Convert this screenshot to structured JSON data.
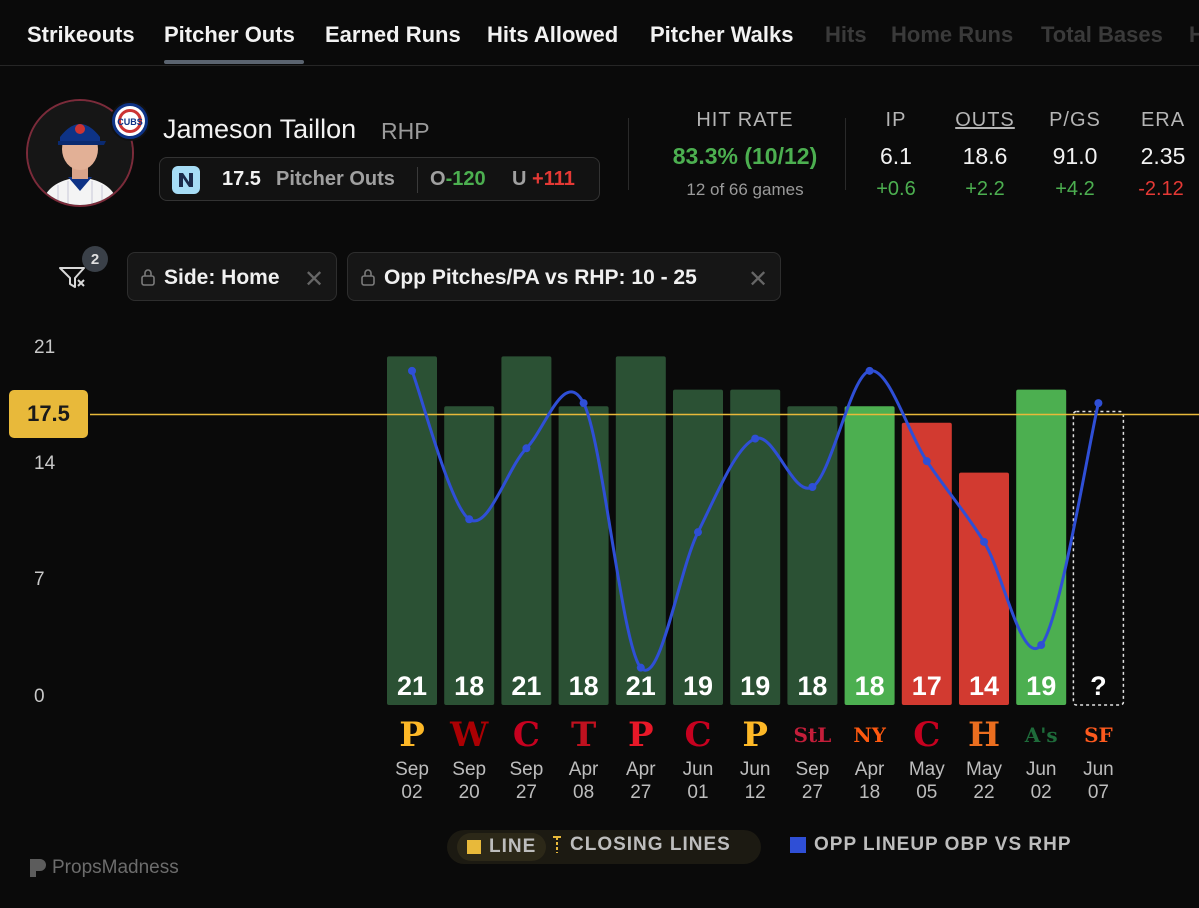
{
  "tabs": [
    {
      "label": "Strikeouts",
      "faded": false
    },
    {
      "label": "Pitcher Outs",
      "faded": false,
      "active": true
    },
    {
      "label": "Earned Runs",
      "faded": false
    },
    {
      "label": "Hits Allowed",
      "faded": false
    },
    {
      "label": "Pitcher Walks",
      "faded": false
    },
    {
      "label": "Hits",
      "faded": true
    },
    {
      "label": "Home Runs",
      "faded": true
    },
    {
      "label": "Total Bases",
      "faded": true
    },
    {
      "label": "H",
      "faded": true
    }
  ],
  "player": {
    "name": "Jameson Taillon",
    "position": "RHP",
    "team_logo_text": "CUBS"
  },
  "prop": {
    "line": "17.5",
    "label": "Pitcher Outs",
    "over_prefix": "O",
    "over_odds": "-120",
    "under_prefix": "U",
    "under_odds": "+111"
  },
  "hit_rate": {
    "header": "HIT RATE",
    "value": "83.3% (10/12)",
    "sub": "12 of 66 games"
  },
  "stats": [
    {
      "header": "IP",
      "value": "6.1",
      "delta": "+0.6",
      "delta_color": "#4caf50"
    },
    {
      "header": "OUTS",
      "value": "18.6",
      "delta": "+2.2",
      "delta_color": "#4caf50"
    },
    {
      "header": "P/GS",
      "value": "91.0",
      "delta": "+4.2",
      "delta_color": "#4caf50"
    },
    {
      "header": "ERA",
      "value": "2.35",
      "delta": "-2.12",
      "delta_color": "#e53935"
    }
  ],
  "filters": {
    "count": "2",
    "chips": [
      {
        "label": "Side: Home"
      },
      {
        "label": "Opp Pitches/PA vs RHP: 10 - 25"
      }
    ]
  },
  "chart_data": {
    "type": "bar",
    "categories": [
      "Sep 02",
      "Sep 20",
      "Sep 27",
      "Apr 08",
      "Apr 27",
      "Jun 01",
      "Jun 12",
      "Sep 27",
      "Apr 18",
      "May 05",
      "May 22",
      "Jun 02",
      "Jun 07"
    ],
    "values": [
      21,
      18,
      21,
      18,
      21,
      19,
      19,
      18,
      18,
      17,
      14,
      19,
      null
    ],
    "bar_labels": [
      "21",
      "18",
      "21",
      "18",
      "21",
      "19",
      "19",
      "18",
      "18",
      "17",
      "14",
      "19",
      "?"
    ],
    "bar_colors": [
      "#2b5134",
      "#2b5134",
      "#2b5134",
      "#2b5134",
      "#2b5134",
      "#2b5134",
      "#2b5134",
      "#2b5134",
      "#4caf50",
      "#d23a30",
      "#d23a30",
      "#4caf50",
      "none"
    ],
    "line": 17.5,
    "ylim": [
      0,
      21
    ],
    "yticks": [
      "21",
      "14",
      "7",
      "0"
    ],
    "line_label": "17.5",
    "opponent_obp_relative": [
      0.98,
      0.52,
      0.74,
      0.88,
      0.06,
      0.48,
      0.77,
      0.62,
      0.98,
      0.7,
      0.45,
      0.13,
      0.88
    ],
    "opponents": [
      {
        "abbr": "P",
        "color": "#fdb827"
      },
      {
        "abbr": "W",
        "color": "#ab0003"
      },
      {
        "abbr": "C",
        "color": "#c6011f"
      },
      {
        "abbr": "T",
        "color": "#c0111f"
      },
      {
        "abbr": "P",
        "color": "#e81828"
      },
      {
        "abbr": "C",
        "color": "#c6011f"
      },
      {
        "abbr": "P",
        "color": "#fdb827"
      },
      {
        "abbr": "StL",
        "color": "#c41e3a"
      },
      {
        "abbr": "NY",
        "color": "#ff5910"
      },
      {
        "abbr": "C",
        "color": "#c6011f"
      },
      {
        "abbr": "H",
        "color": "#eb6e1f"
      },
      {
        "abbr": "A's",
        "color": "#1e6b3a"
      },
      {
        "abbr": "SF",
        "color": "#fd5a1e"
      }
    ]
  },
  "legend": {
    "line": "LINE",
    "closing": "CLOSING LINES",
    "opp": "OPP LINEUP OBP VS RHP"
  },
  "brand": "PropsMadness",
  "colors": {
    "line_yellow": "#e8b93a",
    "obp_blue": "#2f4fd6"
  }
}
